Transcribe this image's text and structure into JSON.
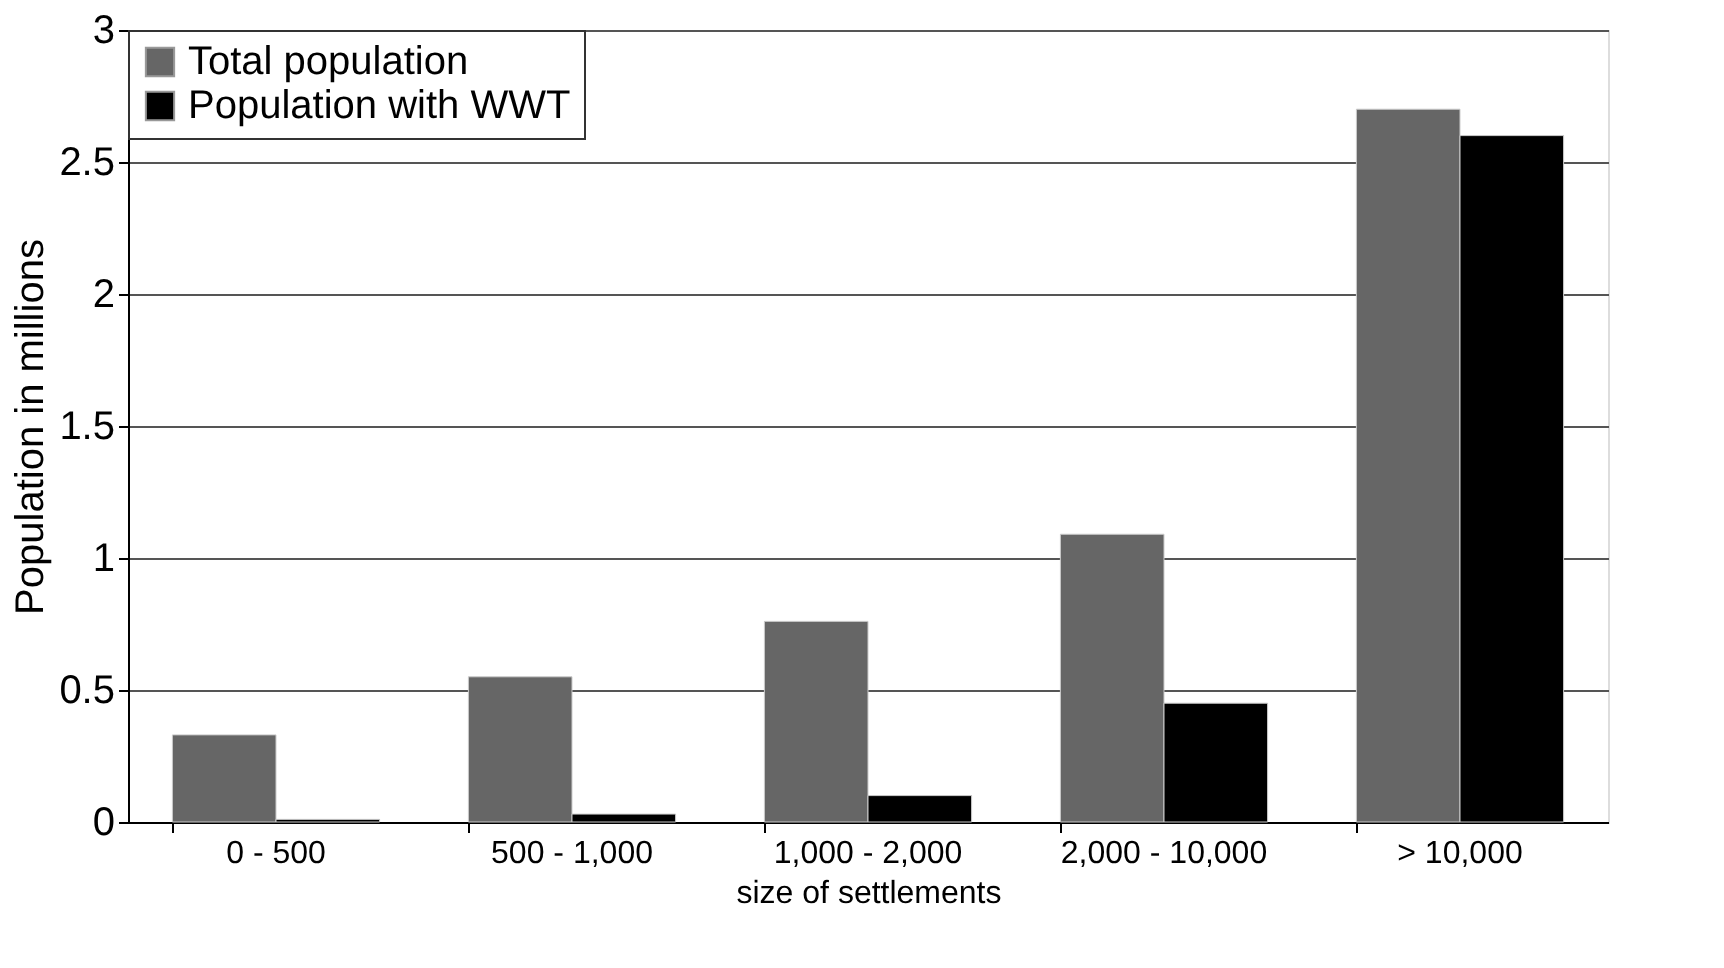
{
  "chart_data": {
    "type": "bar",
    "xlabel": "size of settlements",
    "ylabel": "Population in millions",
    "categories": [
      "0 - 500",
      "500 - 1,000",
      "1,000 - 2,000",
      "2,000 - 10,000",
      "> 10,000"
    ],
    "series": [
      {
        "name": "Total population",
        "color": "#666666",
        "values": [
          0.33,
          0.55,
          0.76,
          1.09,
          2.7
        ]
      },
      {
        "name": "Population with WWT",
        "color": "#000000",
        "values": [
          0.01,
          0.03,
          0.1,
          0.45,
          2.6
        ]
      }
    ],
    "ylim": [
      0,
      3
    ],
    "yticks": [
      0,
      0.5,
      1,
      1.5,
      2,
      2.5,
      3
    ],
    "grid": "y",
    "legend": "top left"
  }
}
